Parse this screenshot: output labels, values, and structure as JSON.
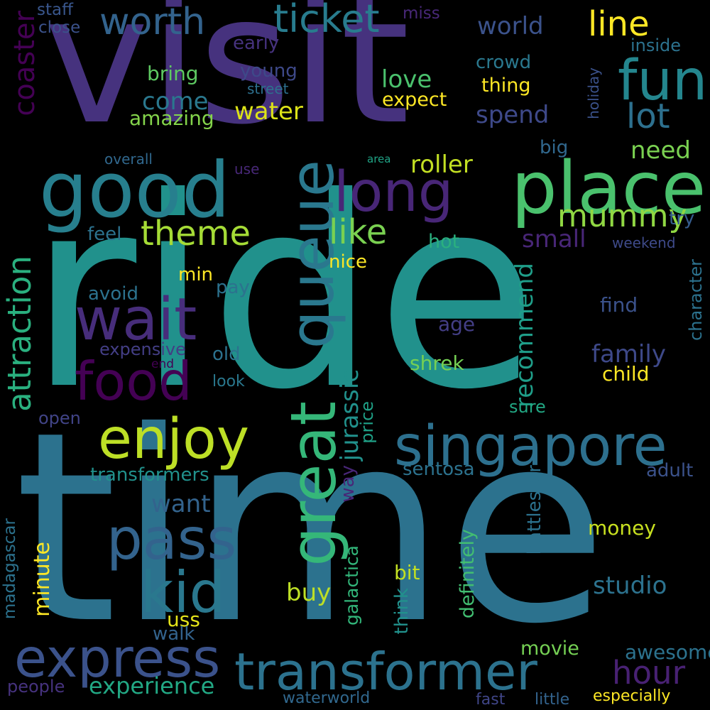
{
  "words": [
    {
      "text": "visit",
      "color": "#46327e"
    },
    {
      "text": "ride",
      "color": "#21918c"
    },
    {
      "text": "time",
      "color": "#2c728e"
    },
    {
      "text": "good",
      "color": "#277f8e"
    },
    {
      "text": "place",
      "color": "#4ac16d"
    },
    {
      "text": "fun",
      "color": "#24868e"
    },
    {
      "text": "long",
      "color": "#482677"
    },
    {
      "text": "queue",
      "color": "#2a788e"
    },
    {
      "text": "wait",
      "color": "#472d7b"
    },
    {
      "text": "food",
      "color": "#440154"
    },
    {
      "text": "enjoy",
      "color": "#bddf26"
    },
    {
      "text": "great",
      "color": "#35b779"
    },
    {
      "text": "singapore",
      "color": "#2d708e"
    },
    {
      "text": "pass",
      "color": "#33638d"
    },
    {
      "text": "kid",
      "color": "#2a788e"
    },
    {
      "text": "express",
      "color": "#3b528b"
    },
    {
      "text": "transformer",
      "color": "#2c728e"
    },
    {
      "text": "ticket",
      "color": "#287c8e"
    },
    {
      "text": "worth",
      "color": "#33638d"
    },
    {
      "text": "line",
      "color": "#fde725"
    },
    {
      "text": "theme",
      "color": "#a5db36"
    },
    {
      "text": "like",
      "color": "#7ad151"
    },
    {
      "text": "mummy",
      "color": "#90d743"
    },
    {
      "text": "lot",
      "color": "#2d708e"
    },
    {
      "text": "coaster",
      "color": "#440154"
    },
    {
      "text": "attraction",
      "color": "#2ab07f"
    },
    {
      "text": "hour",
      "color": "#482173"
    },
    {
      "text": "experience",
      "color": "#22a884"
    },
    {
      "text": "world",
      "color": "#3b528b"
    },
    {
      "text": "love",
      "color": "#4ac16d"
    },
    {
      "text": "water",
      "color": "#dde318"
    },
    {
      "text": "roller",
      "color": "#c2df23"
    },
    {
      "text": "come",
      "color": "#2a788e"
    },
    {
      "text": "bring",
      "color": "#5ec962"
    },
    {
      "text": "young",
      "color": "#3e4989"
    },
    {
      "text": "spend",
      "color": "#3e4989"
    },
    {
      "text": "need",
      "color": "#7ad151"
    },
    {
      "text": "amazing",
      "color": "#84d44b"
    },
    {
      "text": "thing",
      "color": "#fde725"
    },
    {
      "text": "expect",
      "color": "#fde725"
    },
    {
      "text": "crowd",
      "color": "#2a788e"
    },
    {
      "text": "early",
      "color": "#46327e"
    },
    {
      "text": "staff",
      "color": "#39568c"
    },
    {
      "text": "close",
      "color": "#3b528b"
    },
    {
      "text": "miss",
      "color": "#482878"
    },
    {
      "text": "inside",
      "color": "#2c728e"
    },
    {
      "text": "street",
      "color": "#2d708e"
    },
    {
      "text": "holiday",
      "color": "#3b528b"
    },
    {
      "text": "big",
      "color": "#31688e"
    },
    {
      "text": "overall",
      "color": "#31688e"
    },
    {
      "text": "use",
      "color": "#482878"
    },
    {
      "text": "area",
      "color": "#20a486"
    },
    {
      "text": "small",
      "color": "#482677"
    },
    {
      "text": "try",
      "color": "#365c8d"
    },
    {
      "text": "feel",
      "color": "#2c728e"
    },
    {
      "text": "hot",
      "color": "#2ab07f"
    },
    {
      "text": "weekend",
      "color": "#3e4a89"
    },
    {
      "text": "nice",
      "color": "#fde725"
    },
    {
      "text": "min",
      "color": "#fde725"
    },
    {
      "text": "pay",
      "color": "#2c728e"
    },
    {
      "text": "avoid",
      "color": "#2c728e"
    },
    {
      "text": "recommend",
      "color": "#1f9e89"
    },
    {
      "text": "character",
      "color": "#2c728e"
    },
    {
      "text": "find",
      "color": "#3b528b"
    },
    {
      "text": "age",
      "color": "#433e85"
    },
    {
      "text": "family",
      "color": "#3e4989"
    },
    {
      "text": "expensive",
      "color": "#433e85"
    },
    {
      "text": "old",
      "color": "#2c728e"
    },
    {
      "text": "end",
      "color": "#440154"
    },
    {
      "text": "look",
      "color": "#2a788e"
    },
    {
      "text": "shrek",
      "color": "#75d054"
    },
    {
      "text": "child",
      "color": "#fde725"
    },
    {
      "text": "jurassic",
      "color": "#21918c"
    },
    {
      "text": "price",
      "color": "#1fa187"
    },
    {
      "text": "sure",
      "color": "#22a884"
    },
    {
      "text": "open",
      "color": "#414487"
    },
    {
      "text": "transformers",
      "color": "#21918c"
    },
    {
      "text": "sentosa",
      "color": "#2c728e"
    },
    {
      "text": "adult",
      "color": "#3b528b"
    },
    {
      "text": "want",
      "color": "#33638d"
    },
    {
      "text": "way",
      "color": "#482677"
    },
    {
      "text": "battlestar",
      "color": "#2c728e"
    },
    {
      "text": "money",
      "color": "#c8e020"
    },
    {
      "text": "madagascar",
      "color": "#2c728e"
    },
    {
      "text": "minute",
      "color": "#fde725"
    },
    {
      "text": "galactica",
      "color": "#32b67a"
    },
    {
      "text": "definitely",
      "color": "#42be71"
    },
    {
      "text": "bit",
      "color": "#c2df23"
    },
    {
      "text": "buy",
      "color": "#bddf26"
    },
    {
      "text": "studio",
      "color": "#2c728e"
    },
    {
      "text": "think",
      "color": "#21918c"
    },
    {
      "text": "uss",
      "color": "#e5e419"
    },
    {
      "text": "walk",
      "color": "#33638d"
    },
    {
      "text": "movie",
      "color": "#75d054"
    },
    {
      "text": "awesome",
      "color": "#2c728e"
    },
    {
      "text": "people",
      "color": "#46327e"
    },
    {
      "text": "waterworld",
      "color": "#31688e"
    },
    {
      "text": "fast",
      "color": "#404688"
    },
    {
      "text": "little",
      "color": "#33638d"
    },
    {
      "text": "especially",
      "color": "#fde725"
    }
  ]
}
